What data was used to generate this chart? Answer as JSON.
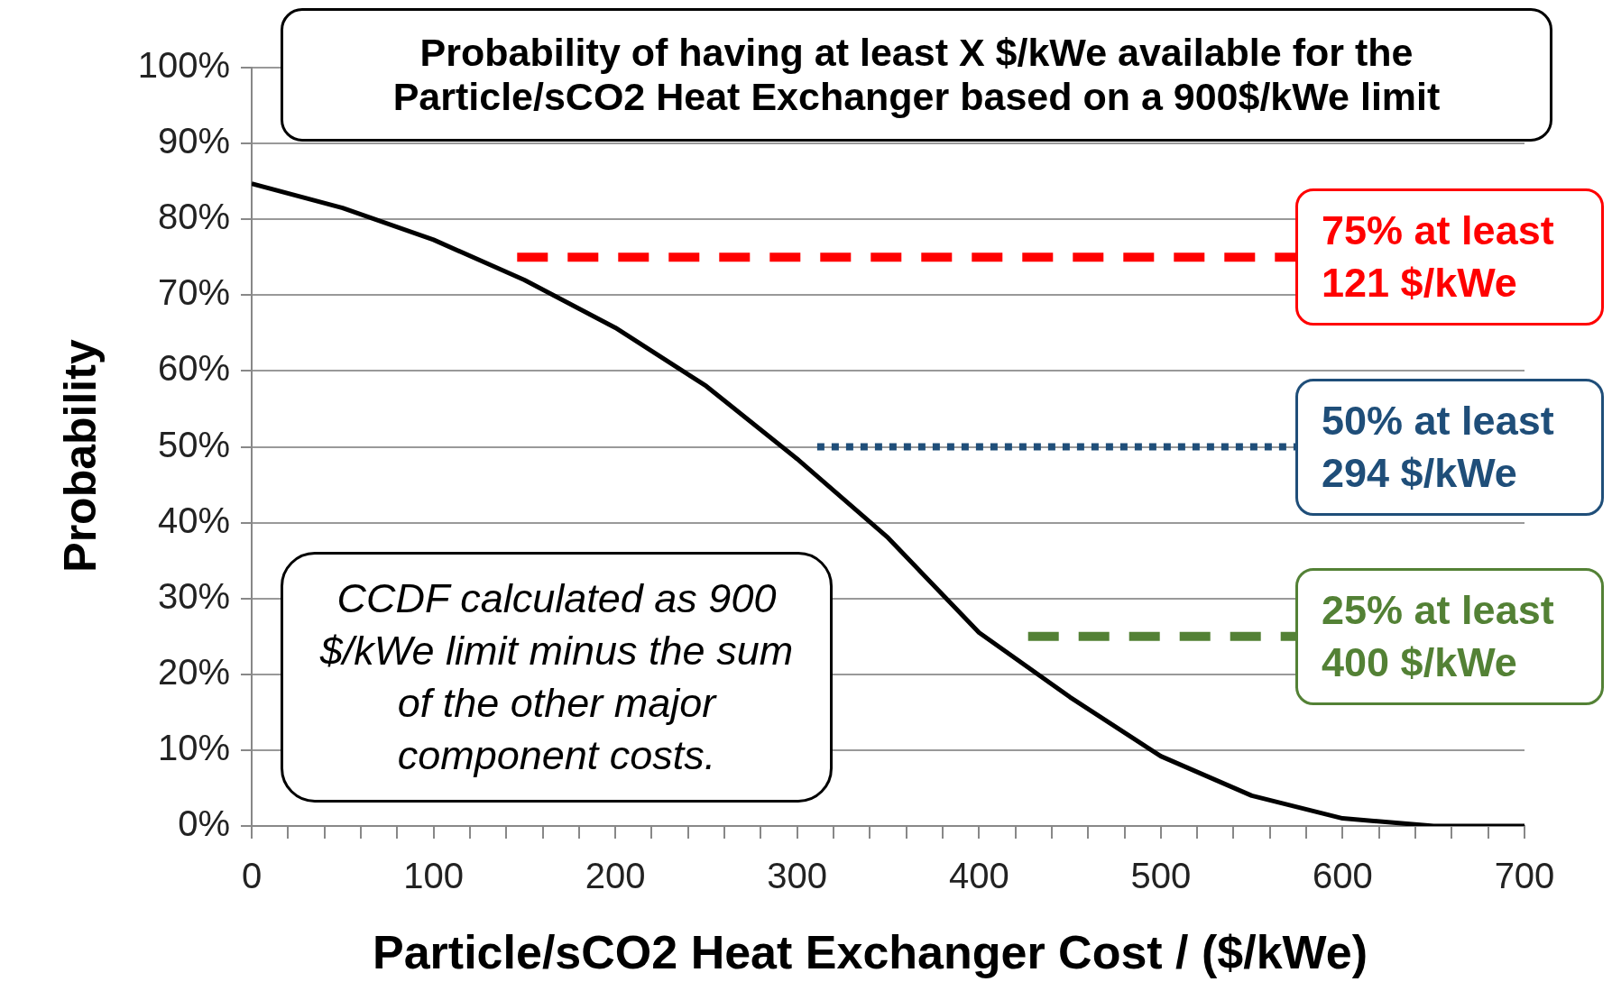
{
  "chart_data": {
    "type": "line",
    "title": "Probability of having at least X $/kWe available for the Particle/sCO2 Heat Exchanger based on a 900$/kWe limit",
    "xlabel": "Particle/sCO2 Heat Exchanger Cost / ($/kWe)",
    "ylabel": "Probability",
    "xlim": [
      0,
      700
    ],
    "ylim": [
      0,
      100
    ],
    "xticks": [
      0,
      {
        "value": 20,
        "label": null
      },
      {
        "value": 40,
        "label": null
      },
      {
        "value": 60,
        "label": null
      },
      {
        "value": 80,
        "label": null
      },
      100,
      {
        "value": 120,
        "label": null
      },
      {
        "value": 140,
        "label": null
      },
      {
        "value": 160,
        "label": null
      },
      {
        "value": 180,
        "label": null
      },
      200,
      {
        "value": 220,
        "label": null
      },
      {
        "value": 240,
        "label": null
      },
      {
        "value": 260,
        "label": null
      },
      {
        "value": 280,
        "label": null
      },
      300,
      {
        "value": 320,
        "label": null
      },
      {
        "value": 340,
        "label": null
      },
      {
        "value": 360,
        "label": null
      },
      {
        "value": 380,
        "label": null
      },
      400,
      {
        "value": 420,
        "label": null
      },
      {
        "value": 440,
        "label": null
      },
      {
        "value": 460,
        "label": null
      },
      {
        "value": 480,
        "label": null
      },
      500,
      {
        "value": 520,
        "label": null
      },
      {
        "value": 540,
        "label": null
      },
      {
        "value": 560,
        "label": null
      },
      {
        "value": 580,
        "label": null
      },
      600,
      {
        "value": 620,
        "label": null
      },
      {
        "value": 640,
        "label": null
      },
      {
        "value": 660,
        "label": null
      },
      {
        "value": 680,
        "label": null
      },
      700
    ],
    "yticks": [
      {
        "value": 0,
        "label": "0%"
      },
      {
        "value": 10,
        "label": "10%"
      },
      {
        "value": 20,
        "label": "20%"
      },
      {
        "value": 30,
        "label": "30%"
      },
      {
        "value": 40,
        "label": "40%"
      },
      {
        "value": 50,
        "label": "50%"
      },
      {
        "value": 60,
        "label": "60%"
      },
      {
        "value": 70,
        "label": "70%"
      },
      {
        "value": 80,
        "label": "80%"
      },
      {
        "value": 90,
        "label": "90%"
      },
      {
        "value": 100,
        "label": "100%"
      }
    ],
    "grid": "y",
    "legend": false,
    "marker": "none",
    "series": [
      {
        "color": "#000000",
        "line_style": "solid",
        "x": [
          0,
          50,
          100,
          150,
          200,
          250,
          300,
          350,
          400,
          450,
          500,
          550,
          600,
          650,
          700
        ],
        "values": [
          84.7,
          81.5,
          77.3,
          72,
          65.7,
          58,
          48.4,
          38,
          25.5,
          17,
          9.2,
          4,
          1,
          0,
          0
        ]
      },
      {
        "name": "75% at least 121 $/kWe",
        "color": "#ff0000",
        "line_style": "dashed",
        "x": [
          146,
          574
        ],
        "values": [
          75,
          75
        ]
      },
      {
        "name": "50% at least 294 $/kWe",
        "color": "#1f4e79",
        "line_style": "dotted",
        "x": [
          311,
          574
        ],
        "values": [
          50,
          50
        ]
      },
      {
        "name": "25% at least 400 $/kWe",
        "color": "#538135",
        "line_style": "dashed",
        "x": [
          427,
          574
        ],
        "values": [
          25,
          25
        ]
      }
    ],
    "annotations": [
      "CCDF calculated as 900 $/kWe limit minus the sum of the other major component costs."
    ]
  }
}
